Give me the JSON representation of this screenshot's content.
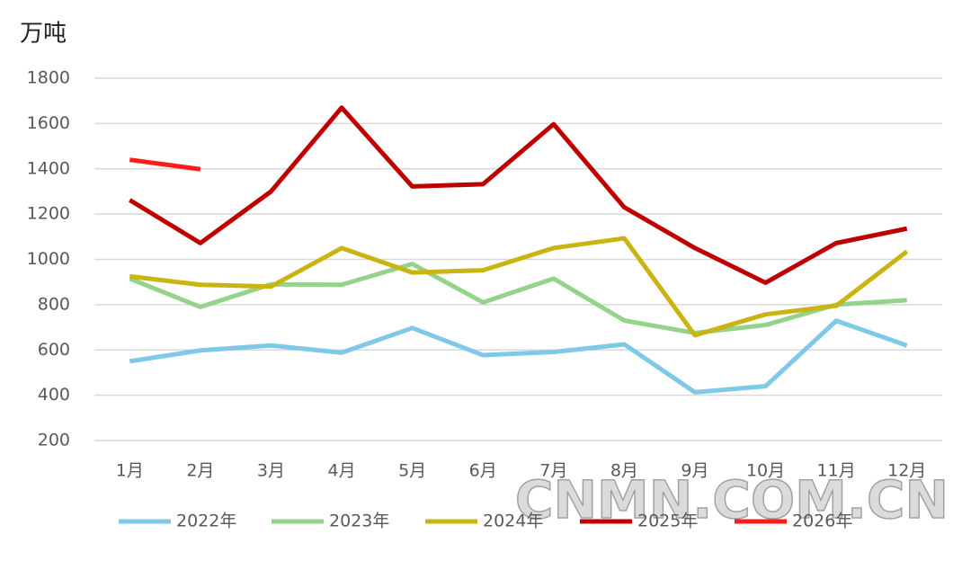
{
  "chart_data": {
    "type": "line",
    "y_label": "万吨",
    "categories": [
      "1月",
      "2月",
      "3月",
      "4月",
      "5月",
      "6月",
      "7月",
      "8月",
      "9月",
      "10月",
      "11月",
      "12月"
    ],
    "series": [
      {
        "name": "2022年",
        "color": "#7ec8e8",
        "values": [
          550,
          598,
          620,
          588,
          697,
          577,
          591,
          625,
          413,
          440,
          729,
          620
        ]
      },
      {
        "name": "2023年",
        "color": "#93d38a",
        "values": [
          915,
          790,
          890,
          888,
          980,
          810,
          915,
          730,
          675,
          710,
          800,
          820
        ]
      },
      {
        "name": "2024年",
        "color": "#c9b412",
        "values": [
          925,
          888,
          880,
          1050,
          942,
          952,
          1050,
          1093,
          665,
          757,
          795,
          1035
        ]
      },
      {
        "name": "2025年",
        "color": "#c00000",
        "values": [
          1262,
          1072,
          1300,
          1670,
          1322,
          1332,
          1597,
          1230,
          1050,
          897,
          1072,
          1136
        ]
      },
      {
        "name": "2026年",
        "color": "#ff1a1a",
        "values": [
          1440,
          1398,
          null,
          null,
          null,
          null,
          null,
          null,
          null,
          null,
          null,
          null
        ]
      }
    ],
    "ylim": [
      200,
      1800
    ],
    "yticks": [
      200,
      400,
      600,
      800,
      1000,
      1200,
      1400,
      1600,
      1800
    ],
    "grid": true,
    "legend": "bottom",
    "watermark": "CNMN.COM.CN"
  }
}
